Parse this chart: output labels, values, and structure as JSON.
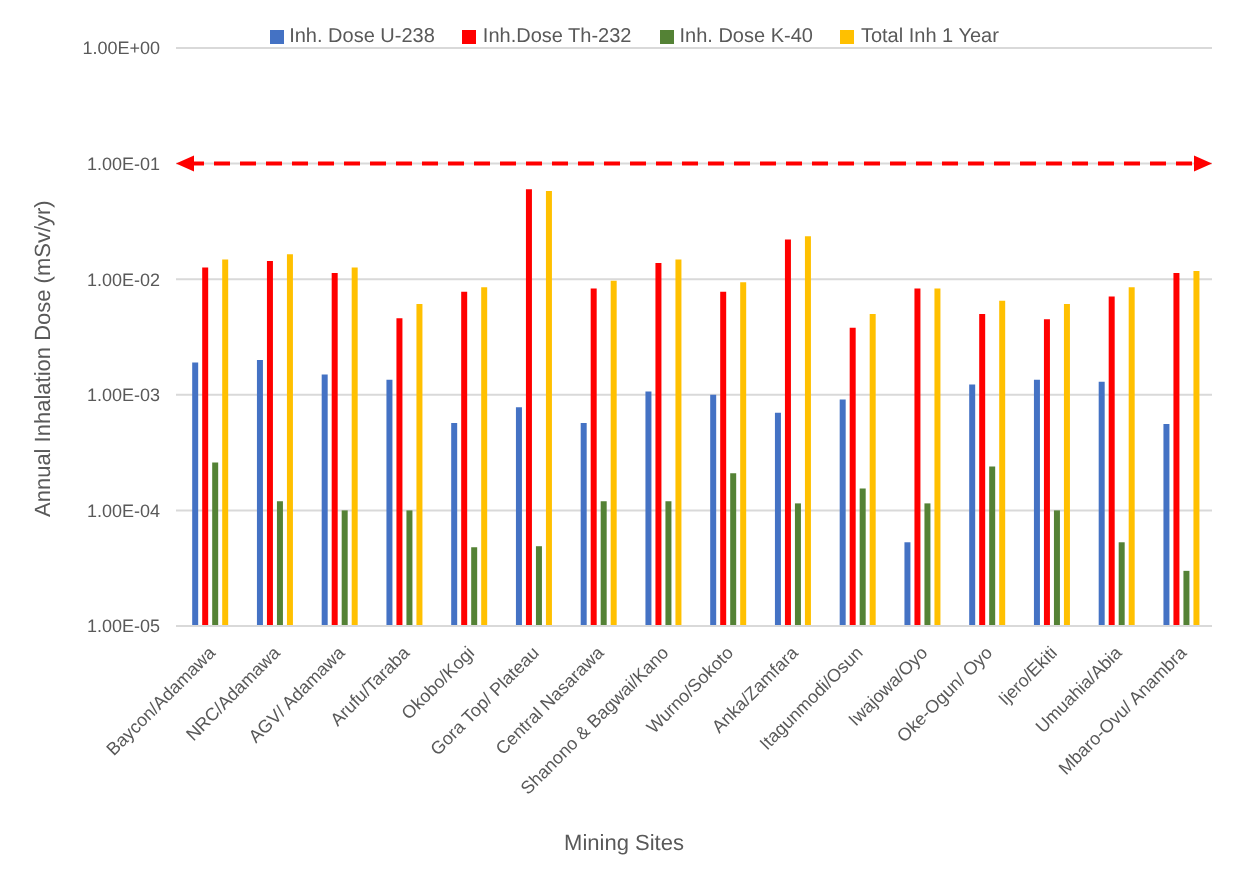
{
  "chart_data": {
    "type": "bar",
    "xlabel": "Mining Sites",
    "ylabel": "Annual Inhalation Dose (mSv/yr)",
    "categories": [
      "Baycon/Adamawa",
      "NRC/Adamawa",
      "AGV/ Adamawa",
      "Arufu/Taraba",
      "Okobo/Kogi",
      "Gora Top/ Plateau",
      "Central Nasarawa",
      "Shanono & Bagwai/Kano",
      "Wurno/Sokoto",
      "Anka/Zamfara",
      "Itagunmodi/Osun",
      "Iwajowa/Oyo",
      "Oke-Ogun/ Oyo",
      "Ijero/Ekiti",
      "Umuahia/Abia",
      "Mbaro-Ovu/ Anambra"
    ],
    "series": [
      {
        "name": "Inh. Dose U-238",
        "color": "#4472c4",
        "values": [
          0.0019,
          0.002,
          0.0015,
          0.00135,
          0.00057,
          0.00078,
          0.00057,
          0.00107,
          0.001,
          0.0007,
          0.00091,
          5.3e-05,
          0.00123,
          0.00135,
          0.0013,
          0.00056
        ]
      },
      {
        "name": "Inh.Dose Th-232",
        "color": "#ff0000",
        "values": [
          0.0126,
          0.0144,
          0.0113,
          0.0046,
          0.0078,
          0.06,
          0.0083,
          0.0138,
          0.0078,
          0.022,
          0.0038,
          0.0083,
          0.005,
          0.0045,
          0.0071,
          0.0113
        ]
      },
      {
        "name": "Inh. Dose K-40",
        "color": "#548235",
        "values": [
          0.00026,
          0.00012,
          0.0001,
          0.0001,
          4.8e-05,
          4.9e-05,
          0.00012,
          0.00012,
          0.00021,
          0.000115,
          0.000155,
          0.000115,
          0.00024,
          0.0001,
          5.3e-05,
          3e-05
        ]
      },
      {
        "name": "Total Inh 1 Year",
        "color": "#ffc000",
        "values": [
          0.0148,
          0.0164,
          0.0126,
          0.0061,
          0.0085,
          0.058,
          0.0097,
          0.0148,
          0.0094,
          0.0235,
          0.005,
          0.0083,
          0.0065,
          0.0061,
          0.0085,
          0.0118
        ]
      }
    ],
    "log": "y",
    "ylim": [
      1e-05,
      1
    ],
    "yticks": [
      {
        "value": 1e-05,
        "label": "1.00E-05"
      },
      {
        "value": 0.0001,
        "label": "1.00E-04"
      },
      {
        "value": 0.001,
        "label": "1.00E-03"
      },
      {
        "value": 0.01,
        "label": "1.00E-02"
      },
      {
        "value": 0.1,
        "label": "1.00E-01"
      },
      {
        "value": 1,
        "label": "1.00E+00"
      }
    ],
    "grid": "y",
    "legend": "top",
    "ref_lines": [
      {
        "axis": "y",
        "value": 0.1,
        "color": "#ff0000",
        "line_style": "dashed"
      }
    ]
  }
}
